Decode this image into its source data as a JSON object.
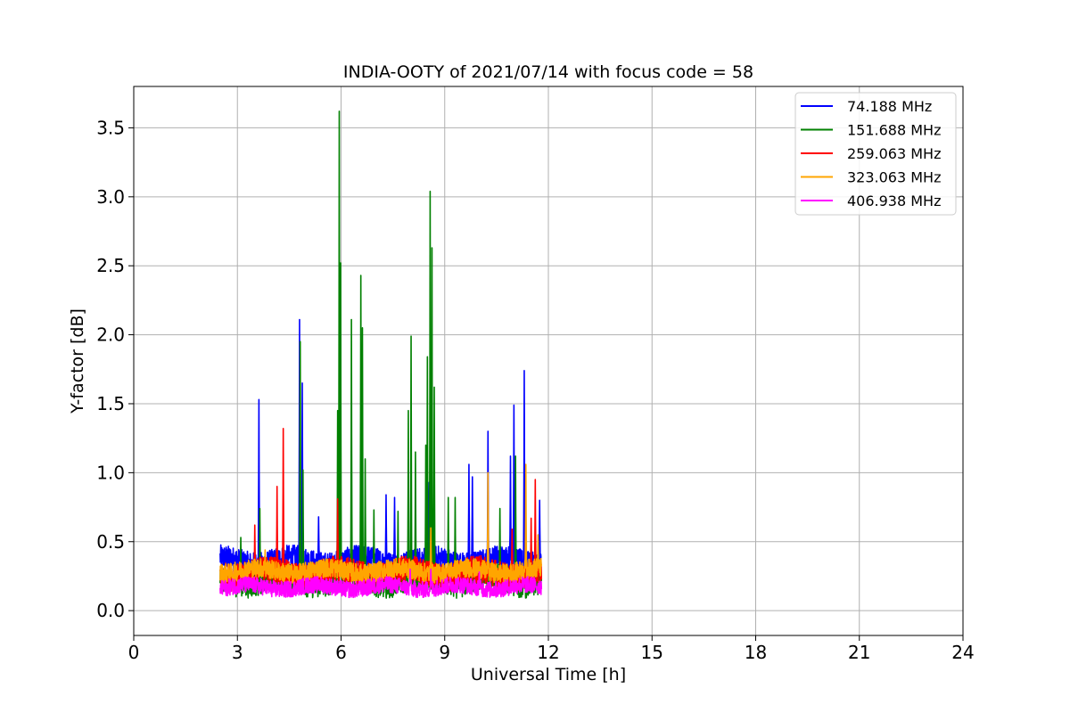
{
  "chart_data": {
    "type": "line",
    "title": "INDIA-OOTY of 2021/07/14 with focus code = 58",
    "xlabel": "Universal Time [h]",
    "ylabel": "Y-factor [dB]",
    "xlim": [
      0,
      24
    ],
    "ylim": [
      -0.18,
      3.8
    ],
    "xticks": [
      0,
      3,
      6,
      9,
      12,
      15,
      18,
      21,
      24
    ],
    "yticks": [
      0.0,
      0.5,
      1.0,
      1.5,
      2.0,
      2.5,
      3.0,
      3.5
    ],
    "ytick_labels": [
      "0.0",
      "0.5",
      "1.0",
      "1.5",
      "2.0",
      "2.5",
      "3.0",
      "3.5"
    ],
    "grid": true,
    "legend_position": "top-right",
    "x_range_of_data": [
      2.5,
      11.8
    ],
    "series": [
      {
        "name": " 74.188 MHz",
        "color": "#0000ff",
        "baseline": 0.36,
        "noise": 0.09,
        "peaks": [
          [
            3.62,
            1.53
          ],
          [
            4.8,
            2.11
          ],
          [
            4.88,
            1.65
          ],
          [
            5.35,
            0.68
          ],
          [
            5.98,
            0.94
          ],
          [
            7.3,
            0.84
          ],
          [
            7.55,
            0.82
          ],
          [
            8.55,
            0.93
          ],
          [
            9.7,
            1.06
          ],
          [
            9.8,
            0.97
          ],
          [
            10.25,
            1.3
          ],
          [
            10.9,
            1.12
          ],
          [
            11.0,
            1.49
          ],
          [
            11.3,
            1.74
          ],
          [
            11.75,
            0.8
          ]
        ]
      },
      {
        "name": "151.688 MHz",
        "color": "#008000",
        "baseline": 0.22,
        "noise": 0.1,
        "peaks": [
          [
            3.1,
            0.53
          ],
          [
            3.65,
            0.74
          ],
          [
            4.82,
            1.95
          ],
          [
            4.9,
            1.02
          ],
          [
            5.9,
            1.45
          ],
          [
            5.95,
            3.62
          ],
          [
            5.99,
            2.52
          ],
          [
            6.3,
            2.11
          ],
          [
            6.57,
            2.43
          ],
          [
            6.62,
            2.05
          ],
          [
            6.7,
            1.1
          ],
          [
            6.95,
            0.73
          ],
          [
            7.65,
            0.72
          ],
          [
            7.95,
            1.45
          ],
          [
            8.03,
            1.99
          ],
          [
            8.15,
            1.15
          ],
          [
            8.45,
            1.2
          ],
          [
            8.5,
            1.84
          ],
          [
            8.58,
            3.04
          ],
          [
            8.63,
            2.63
          ],
          [
            8.7,
            1.62
          ],
          [
            9.1,
            0.82
          ],
          [
            9.3,
            0.82
          ],
          [
            10.6,
            0.74
          ],
          [
            11.05,
            1.12
          ]
        ]
      },
      {
        "name": "259.063 MHz",
        "color": "#ff0000",
        "baseline": 0.27,
        "noise": 0.1,
        "peaks": [
          [
            3.5,
            0.62
          ],
          [
            4.15,
            0.9
          ],
          [
            4.33,
            1.32
          ],
          [
            5.9,
            0.81
          ],
          [
            10.95,
            0.59
          ],
          [
            11.5,
            0.67
          ],
          [
            11.62,
            0.95
          ]
        ]
      },
      {
        "name": "323.063 MHz",
        "color": "#ffa500",
        "baseline": 0.29,
        "noise": 0.07,
        "peaks": [
          [
            3.8,
            0.44
          ],
          [
            8.6,
            0.6
          ],
          [
            10.25,
            1.0
          ],
          [
            11.35,
            1.06
          ],
          [
            11.7,
            0.55
          ]
        ]
      },
      {
        "name": "406.938 MHz",
        "color": "#ff00ff",
        "baseline": 0.17,
        "noise": 0.06,
        "peaks": [
          [
            8.0,
            0.3
          ],
          [
            8.6,
            0.3
          ],
          [
            10.0,
            0.28
          ]
        ]
      }
    ]
  }
}
